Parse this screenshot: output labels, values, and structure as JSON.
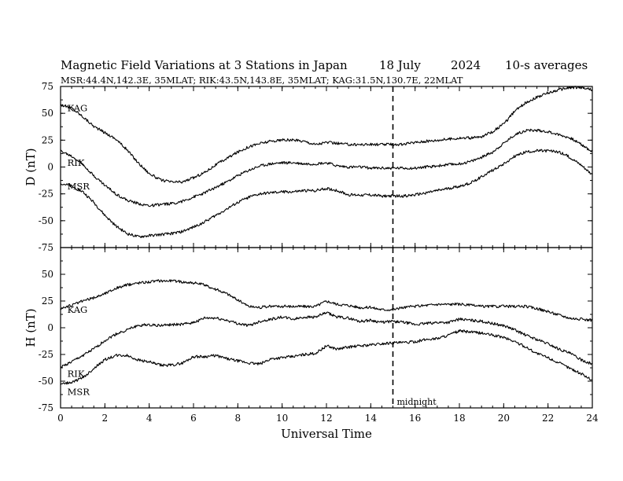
{
  "header": {
    "title": "Magnetic Field Variations at 3 Stations in Japan",
    "date": "18 July",
    "year": "2024",
    "averaging": "10-s averages",
    "stations_line": "MSR:44.4N,142.3E, 35MLAT;  RIK:43.5N,143.8E, 35MLAT;  KAG:31.5N,130.7E, 22MLAT"
  },
  "chart_data": [
    {
      "type": "line",
      "id": "D",
      "ylabel": "D (nT)",
      "xlabel": "",
      "xlim": [
        0,
        24
      ],
      "ylim": [
        -75,
        75
      ],
      "xticks": [
        "0",
        "2",
        "4",
        "6",
        "8",
        "10",
        "12",
        "14",
        "16",
        "18",
        "20",
        "22",
        "24"
      ],
      "yticks": [
        "75",
        "50",
        "25",
        "0",
        "-25",
        "-50",
        "-75"
      ],
      "marker_x": 15,
      "series": [
        {
          "name": "KAG",
          "label_at": [
            0.2,
            55
          ],
          "x": [
            0,
            0.5,
            1,
            1.5,
            2,
            2.5,
            3,
            3.5,
            4,
            4.5,
            5,
            5.5,
            6,
            6.5,
            7,
            7.5,
            8,
            8.5,
            9,
            9.5,
            10,
            10.5,
            11,
            11.5,
            12,
            12.5,
            13,
            13.5,
            14,
            14.5,
            15,
            15.5,
            16,
            16.5,
            17,
            17.5,
            18,
            18.5,
            19,
            19.5,
            20,
            20.5,
            21,
            21.5,
            22,
            22.5,
            23,
            23.5,
            24
          ],
          "y": [
            58,
            55,
            47,
            38,
            32,
            26,
            16,
            4,
            -6,
            -12,
            -14,
            -14,
            -10,
            -5,
            2,
            8,
            14,
            19,
            22,
            24,
            25,
            25,
            24,
            21,
            23,
            22,
            21,
            21,
            21,
            21,
            21,
            21,
            23,
            24,
            25,
            26,
            27,
            27,
            28,
            33,
            40,
            52,
            60,
            65,
            69,
            72,
            74,
            74,
            72
          ]
        },
        {
          "name": "RIK",
          "label_at": [
            0.2,
            4
          ],
          "x": [
            0,
            0.5,
            1,
            1.5,
            2,
            2.5,
            3,
            3.5,
            4,
            4.5,
            5,
            5.5,
            6,
            6.5,
            7,
            7.5,
            8,
            8.5,
            9,
            9.5,
            10,
            10.5,
            11,
            11.5,
            12,
            12.5,
            13,
            13.5,
            14,
            14.5,
            15,
            15.5,
            16,
            16.5,
            17,
            17.5,
            18,
            18.5,
            19,
            19.5,
            20,
            20.5,
            21,
            21.5,
            22,
            22.5,
            23,
            23.5,
            24
          ],
          "y": [
            15,
            10,
            3,
            -8,
            -17,
            -25,
            -31,
            -34,
            -36,
            -35,
            -34,
            -32,
            -28,
            -24,
            -19,
            -14,
            -8,
            -3,
            1,
            3,
            4,
            4,
            3,
            3,
            4,
            1,
            0,
            0,
            -1,
            -1,
            -1,
            -1,
            -1,
            0,
            1,
            2,
            3,
            5,
            9,
            14,
            22,
            30,
            34,
            34,
            33,
            30,
            27,
            21,
            14
          ]
        },
        {
          "name": "MSR",
          "label_at": [
            0.2,
            -18
          ],
          "x": [
            0,
            0.5,
            1,
            1.5,
            2,
            2.5,
            3,
            3.5,
            4,
            4.5,
            5,
            5.5,
            6,
            6.5,
            7,
            7.5,
            8,
            8.5,
            9,
            9.5,
            10,
            10.5,
            11,
            11.5,
            12,
            12.5,
            13,
            13.5,
            14,
            14.5,
            15,
            15.5,
            16,
            16.5,
            17,
            17.5,
            18,
            18.5,
            19,
            19.5,
            20,
            20.5,
            21,
            21.5,
            22,
            22.5,
            23,
            23.5,
            24
          ],
          "y": [
            -15,
            -18,
            -23,
            -33,
            -45,
            -55,
            -62,
            -65,
            -64,
            -63,
            -62,
            -60,
            -56,
            -51,
            -45,
            -39,
            -33,
            -28,
            -25,
            -24,
            -23,
            -23,
            -22,
            -22,
            -20,
            -22,
            -26,
            -26,
            -26,
            -27,
            -27,
            -27,
            -26,
            -24,
            -22,
            -20,
            -18,
            -15,
            -9,
            -3,
            3,
            10,
            14,
            15,
            15,
            14,
            9,
            2,
            -7
          ]
        }
      ]
    },
    {
      "type": "line",
      "id": "H",
      "ylabel": "H (nT)",
      "xlabel": "Universal Time",
      "xlim": [
        0,
        24
      ],
      "ylim": [
        -75,
        75
      ],
      "xticks": [
        "0",
        "2",
        "4",
        "6",
        "8",
        "10",
        "12",
        "14",
        "16",
        "18",
        "20",
        "22",
        "24"
      ],
      "yticks": [
        "75",
        "50",
        "25",
        "0",
        "-25",
        "-50",
        "-75"
      ],
      "marker_x": 15,
      "marker_label": "midnight",
      "series": [
        {
          "name": "KAG",
          "label_at": [
            0.2,
            17
          ],
          "x": [
            0,
            0.5,
            1,
            1.5,
            2,
            2.5,
            3,
            3.5,
            4,
            4.5,
            5,
            5.5,
            6,
            6.5,
            7,
            7.5,
            8,
            8.5,
            9,
            9.5,
            10,
            10.5,
            11,
            11.5,
            12,
            12.5,
            13,
            13.5,
            14,
            14.5,
            15,
            15.5,
            16,
            16.5,
            17,
            17.5,
            18,
            18.5,
            19,
            19.5,
            20,
            20.5,
            21,
            21.5,
            22,
            22.5,
            23,
            23.5,
            24
          ],
          "y": [
            18,
            21,
            25,
            28,
            32,
            37,
            40,
            42,
            43,
            44,
            44,
            43,
            42,
            40,
            36,
            32,
            26,
            20,
            19,
            20,
            20,
            20,
            20,
            20,
            25,
            22,
            21,
            19,
            19,
            17,
            17,
            19,
            20,
            21,
            22,
            22,
            22,
            21,
            20,
            20,
            20,
            20,
            20,
            18,
            15,
            12,
            9,
            8,
            7
          ]
        },
        {
          "name": "RIK",
          "label_at": [
            0.2,
            -43
          ],
          "x": [
            0,
            0.5,
            1,
            1.5,
            2,
            2.5,
            3,
            3.5,
            4,
            4.5,
            5,
            5.5,
            6,
            6.5,
            7,
            7.5,
            8,
            8.5,
            9,
            9.5,
            10,
            10.5,
            11,
            11.5,
            12,
            12.5,
            13,
            13.5,
            14,
            14.5,
            15,
            15.5,
            16,
            16.5,
            17,
            17.5,
            18,
            18.5,
            19,
            19.5,
            20,
            20.5,
            21,
            21.5,
            22,
            22.5,
            23,
            23.5,
            24
          ],
          "y": [
            -37,
            -32,
            -26,
            -20,
            -12,
            -6,
            -2,
            2,
            3,
            2,
            3,
            3,
            5,
            9,
            9,
            7,
            4,
            2,
            6,
            8,
            10,
            8,
            10,
            10,
            14,
            10,
            9,
            6,
            7,
            5,
            6,
            5,
            3,
            4,
            5,
            5,
            8,
            7,
            6,
            4,
            2,
            -2,
            -7,
            -11,
            -15,
            -20,
            -24,
            -30,
            -34
          ]
        },
        {
          "name": "MSR",
          "label_at": [
            0.2,
            -60
          ],
          "x": [
            0,
            0.5,
            1,
            1.5,
            2,
            2.5,
            3,
            3.5,
            4,
            4.5,
            5,
            5.5,
            6,
            6.5,
            7,
            7.5,
            8,
            8.5,
            9,
            9.5,
            10,
            10.5,
            11,
            11.5,
            12,
            12.5,
            13,
            13.5,
            14,
            14.5,
            15,
            15.5,
            16,
            16.5,
            17,
            17.5,
            18,
            18.5,
            19,
            19.5,
            20,
            20.5,
            21,
            21.5,
            22,
            22.5,
            23,
            23.5,
            24
          ],
          "y": [
            -53,
            -51,
            -47,
            -38,
            -30,
            -26,
            -26,
            -30,
            -32,
            -35,
            -35,
            -33,
            -27,
            -27,
            -26,
            -29,
            -31,
            -33,
            -34,
            -29,
            -28,
            -27,
            -25,
            -24,
            -17,
            -20,
            -18,
            -17,
            -16,
            -15,
            -14,
            -14,
            -13,
            -11,
            -10,
            -7,
            -3,
            -4,
            -5,
            -7,
            -9,
            -13,
            -18,
            -24,
            -28,
            -33,
            -38,
            -43,
            -49
          ]
        }
      ]
    }
  ]
}
